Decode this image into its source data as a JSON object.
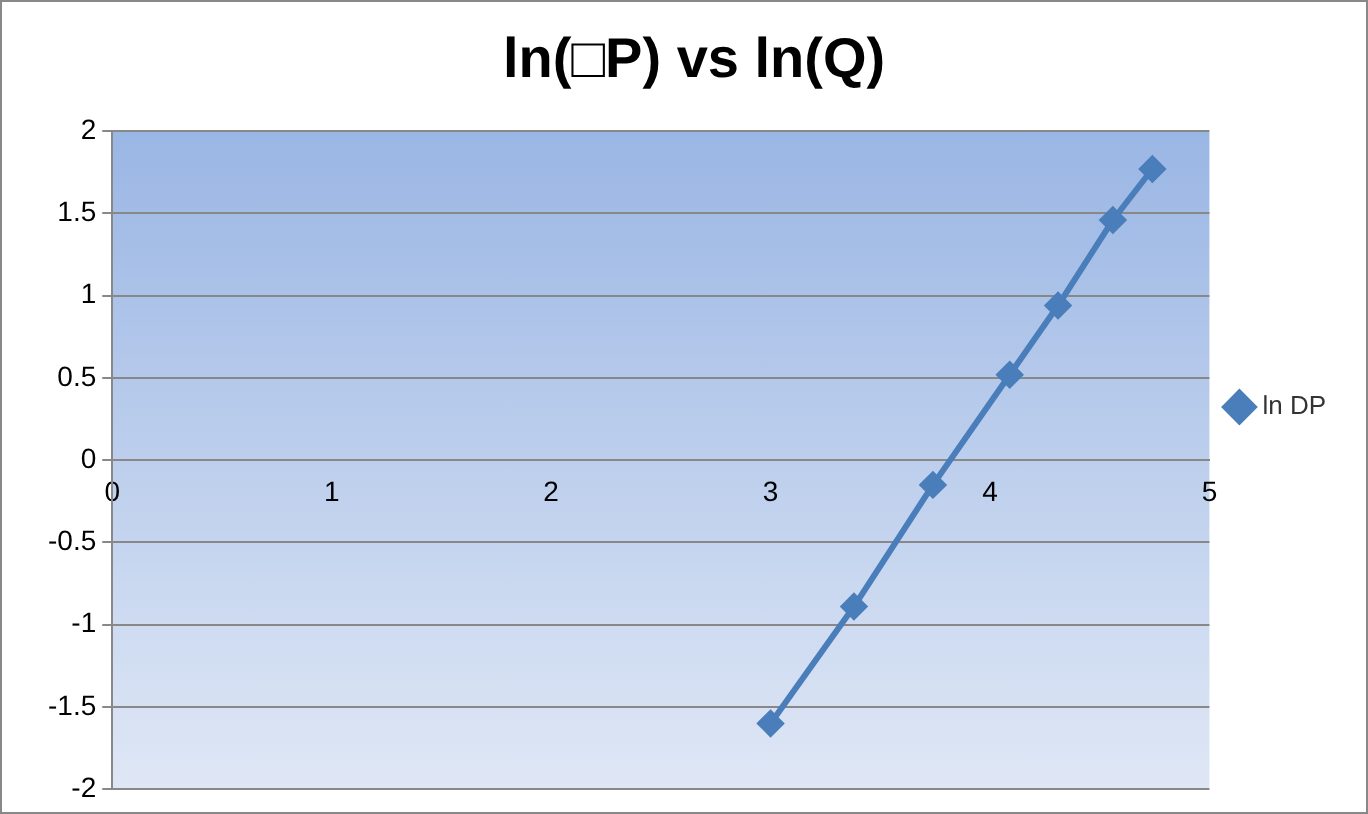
{
  "chart_data": {
    "type": "line",
    "title": "ln(□P) vs ln(Q)",
    "x": [
      3.0,
      3.38,
      3.74,
      4.09,
      4.31,
      4.56,
      4.74
    ],
    "series": [
      {
        "name": "ln DP",
        "color": "#4a7ebb",
        "values": [
          -1.6,
          -0.89,
          -0.15,
          0.52,
          0.94,
          1.46,
          1.77
        ]
      }
    ],
    "xlim": [
      0,
      5
    ],
    "xticks": [
      0,
      1,
      2,
      3,
      4,
      5
    ],
    "ylim": [
      -2,
      2
    ],
    "yticks": [
      -2,
      -1.5,
      -1,
      -0.5,
      0,
      0.5,
      1,
      1.5,
      2
    ],
    "grid": "y",
    "legend": "right",
    "marker": "diamond",
    "line_style": "solid"
  }
}
